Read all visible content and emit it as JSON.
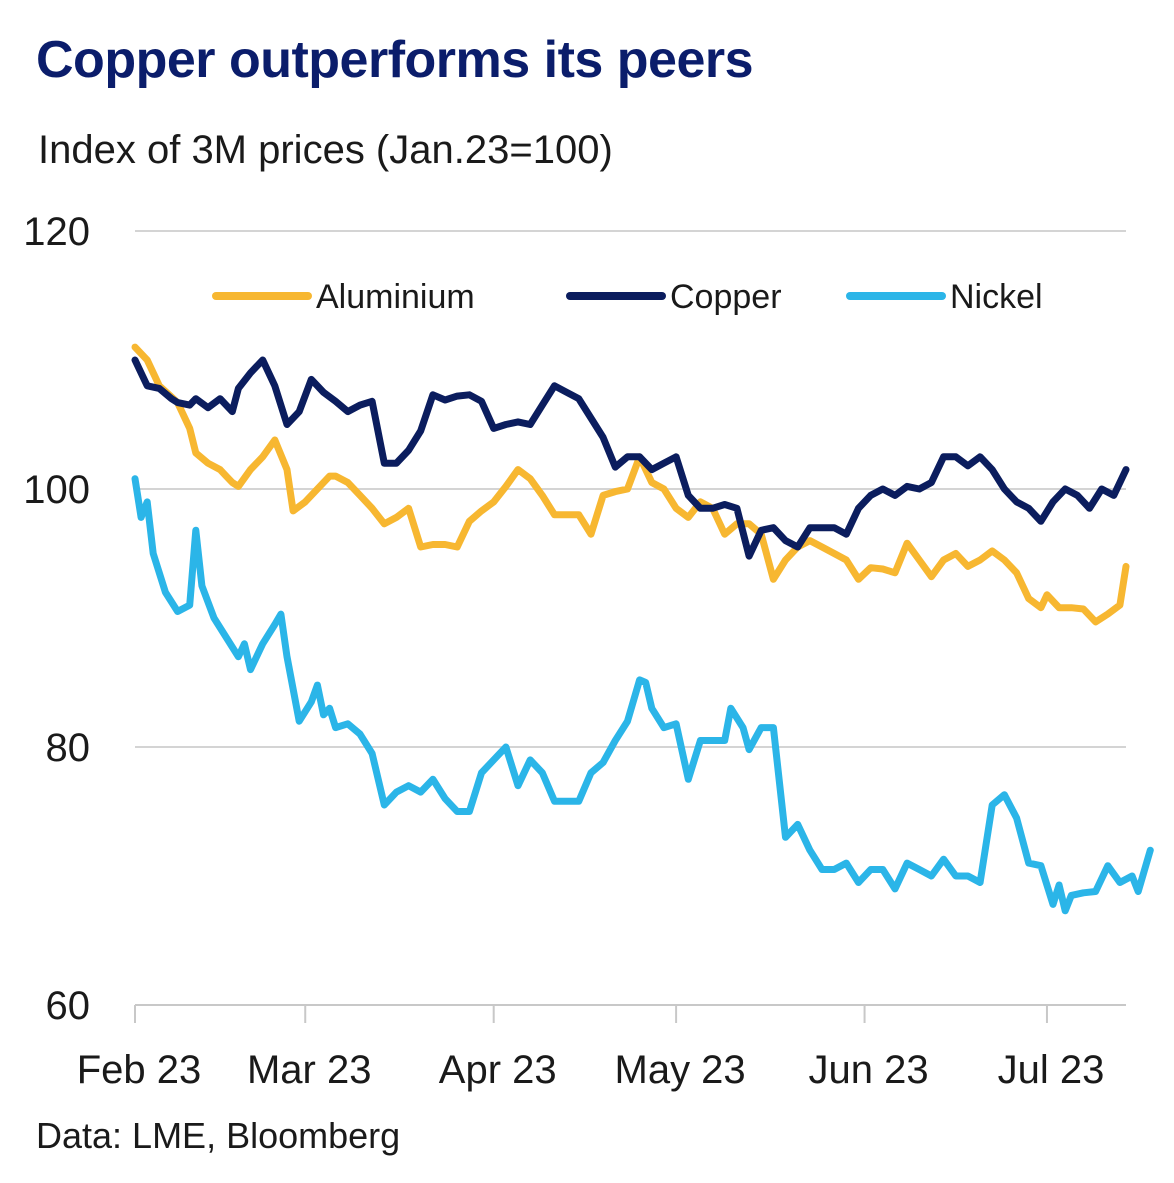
{
  "title": "Copper outperforms its peers",
  "subtitle": "Index of 3M prices (Jan.23=100)",
  "source": "Data: LME, Bloomberg",
  "chart_data": {
    "type": "line",
    "y_ticks": [
      "120",
      "100",
      "80",
      "60"
    ],
    "y_tick_values": [
      120,
      100,
      80,
      60
    ],
    "ylim": [
      60,
      120
    ],
    "x_ticks": [
      "Feb 23",
      "Mar 23",
      "Apr 23",
      "May 23",
      "Jun 23",
      "Jul 23"
    ],
    "x_tick_positions": [
      1,
      29,
      60,
      90,
      121,
      151
    ],
    "xlim": [
      1,
      164
    ],
    "grid": true,
    "legend_placement": "top",
    "series": [
      {
        "name": "Aluminium",
        "color": "#f7b731",
        "points": [
          [
            1,
            111
          ],
          [
            3,
            110
          ],
          [
            5,
            108
          ],
          [
            8,
            106.7
          ],
          [
            10,
            104.7
          ],
          [
            11,
            102.8
          ],
          [
            13,
            102
          ],
          [
            15,
            101.5
          ],
          [
            16,
            101
          ],
          [
            17,
            100.5
          ],
          [
            18,
            100.2
          ],
          [
            20,
            101.5
          ],
          [
            22,
            102.5
          ],
          [
            24,
            103.8
          ],
          [
            26,
            101.5
          ],
          [
            27,
            98.3
          ],
          [
            29,
            99
          ],
          [
            31,
            100
          ],
          [
            33,
            101
          ],
          [
            34,
            101
          ],
          [
            36,
            100.5
          ],
          [
            38,
            99.5
          ],
          [
            40,
            98.5
          ],
          [
            42,
            97.3
          ],
          [
            44,
            97.8
          ],
          [
            46,
            98.5
          ],
          [
            48,
            95.5
          ],
          [
            50,
            95.7
          ],
          [
            52,
            95.7
          ],
          [
            54,
            95.5
          ],
          [
            56,
            97.5
          ],
          [
            58,
            98.3
          ],
          [
            60,
            99
          ],
          [
            62,
            100.2
          ],
          [
            64,
            101.5
          ],
          [
            66,
            100.8
          ],
          [
            68,
            99.5
          ],
          [
            70,
            98
          ],
          [
            72,
            98
          ],
          [
            74,
            98
          ],
          [
            76,
            96.5
          ],
          [
            78,
            99.5
          ],
          [
            80,
            99.8
          ],
          [
            82,
            100
          ],
          [
            84,
            102.5
          ],
          [
            86,
            100.5
          ],
          [
            88,
            100
          ],
          [
            90,
            98.5
          ],
          [
            92,
            97.8
          ],
          [
            94,
            99
          ],
          [
            96,
            98.5
          ],
          [
            98,
            96.5
          ],
          [
            100,
            97.3
          ],
          [
            102,
            97.3
          ],
          [
            104,
            96.5
          ],
          [
            106,
            93
          ],
          [
            108,
            94.5
          ],
          [
            110,
            95.5
          ],
          [
            112,
            96
          ],
          [
            114,
            95.5
          ],
          [
            116,
            95
          ],
          [
            118,
            94.5
          ],
          [
            120,
            93
          ],
          [
            122,
            93.9
          ],
          [
            124,
            93.8
          ],
          [
            126,
            93.5
          ],
          [
            128,
            95.8
          ],
          [
            130,
            94.5
          ],
          [
            132,
            93.2
          ],
          [
            134,
            94.5
          ],
          [
            136,
            95
          ],
          [
            138,
            94
          ],
          [
            140,
            94.5
          ],
          [
            142,
            95.2
          ],
          [
            144,
            94.5
          ],
          [
            146,
            93.5
          ],
          [
            148,
            91.5
          ],
          [
            150,
            90.8
          ],
          [
            151,
            91.8
          ],
          [
            153,
            90.8
          ],
          [
            155,
            90.8
          ],
          [
            157,
            90.7
          ],
          [
            159,
            89.7
          ],
          [
            161,
            90.3
          ],
          [
            163,
            91
          ],
          [
            164,
            94
          ]
        ]
      },
      {
        "name": "Copper",
        "color": "#0b1d5e",
        "points": [
          [
            1,
            110
          ],
          [
            3,
            108
          ],
          [
            5,
            107.8
          ],
          [
            7,
            107
          ],
          [
            8,
            106.7
          ],
          [
            10,
            106.5
          ],
          [
            11,
            107
          ],
          [
            13,
            106.3
          ],
          [
            15,
            107
          ],
          [
            17,
            106
          ],
          [
            18,
            107.8
          ],
          [
            20,
            109
          ],
          [
            22,
            110
          ],
          [
            24,
            108
          ],
          [
            26,
            105
          ],
          [
            28,
            106
          ],
          [
            30,
            108.5
          ],
          [
            32,
            107.5
          ],
          [
            34,
            106.8
          ],
          [
            36,
            106
          ],
          [
            38,
            106.5
          ],
          [
            40,
            106.8
          ],
          [
            42,
            102
          ],
          [
            44,
            102
          ],
          [
            46,
            103
          ],
          [
            48,
            104.5
          ],
          [
            50,
            107.3
          ],
          [
            52,
            106.9
          ],
          [
            54,
            107.2
          ],
          [
            56,
            107.3
          ],
          [
            58,
            106.8
          ],
          [
            60,
            104.7
          ],
          [
            62,
            105
          ],
          [
            64,
            105.2
          ],
          [
            66,
            105
          ],
          [
            68,
            106.5
          ],
          [
            70,
            108
          ],
          [
            72,
            107.5
          ],
          [
            74,
            107
          ],
          [
            76,
            105.5
          ],
          [
            78,
            104
          ],
          [
            80,
            101.7
          ],
          [
            82,
            102.5
          ],
          [
            84,
            102.5
          ],
          [
            86,
            101.5
          ],
          [
            88,
            102
          ],
          [
            90,
            102.5
          ],
          [
            92,
            99.5
          ],
          [
            94,
            98.5
          ],
          [
            96,
            98.5
          ],
          [
            98,
            98.8
          ],
          [
            100,
            98.5
          ],
          [
            102,
            94.8
          ],
          [
            104,
            96.8
          ],
          [
            106,
            97
          ],
          [
            108,
            96
          ],
          [
            110,
            95.5
          ],
          [
            112,
            97
          ],
          [
            114,
            97
          ],
          [
            116,
            97
          ],
          [
            118,
            96.5
          ],
          [
            120,
            98.5
          ],
          [
            122,
            99.5
          ],
          [
            124,
            100
          ],
          [
            126,
            99.5
          ],
          [
            128,
            100.2
          ],
          [
            130,
            100
          ],
          [
            132,
            100.5
          ],
          [
            134,
            102.5
          ],
          [
            136,
            102.5
          ],
          [
            138,
            101.8
          ],
          [
            140,
            102.5
          ],
          [
            142,
            101.5
          ],
          [
            144,
            100
          ],
          [
            146,
            99
          ],
          [
            148,
            98.5
          ],
          [
            150,
            97.5
          ],
          [
            152,
            99
          ],
          [
            154,
            100
          ],
          [
            156,
            99.5
          ],
          [
            158,
            98.5
          ],
          [
            160,
            100
          ],
          [
            162,
            99.5
          ],
          [
            164,
            101.5
          ]
        ]
      },
      {
        "name": "Nickel",
        "color": "#2bb5e8",
        "points": [
          [
            1,
            100.8
          ],
          [
            2,
            97.8
          ],
          [
            3,
            99
          ],
          [
            4,
            95
          ],
          [
            6,
            92
          ],
          [
            8,
            90.5
          ],
          [
            10,
            91
          ],
          [
            11,
            96.8
          ],
          [
            12,
            92.5
          ],
          [
            14,
            90
          ],
          [
            16,
            88.5
          ],
          [
            18,
            87
          ],
          [
            19,
            88
          ],
          [
            20,
            86
          ],
          [
            22,
            88
          ],
          [
            24,
            89.5
          ],
          [
            25,
            90.3
          ],
          [
            26,
            87
          ],
          [
            28,
            82
          ],
          [
            30,
            83.5
          ],
          [
            31,
            84.8
          ],
          [
            32,
            82.5
          ],
          [
            33,
            83
          ],
          [
            34,
            81.5
          ],
          [
            36,
            81.8
          ],
          [
            38,
            81
          ],
          [
            40,
            79.5
          ],
          [
            42,
            75.5
          ],
          [
            44,
            76.5
          ],
          [
            46,
            77
          ],
          [
            48,
            76.5
          ],
          [
            50,
            77.5
          ],
          [
            52,
            76
          ],
          [
            54,
            75
          ],
          [
            56,
            75
          ],
          [
            58,
            78
          ],
          [
            60,
            79
          ],
          [
            62,
            80
          ],
          [
            64,
            77
          ],
          [
            66,
            79
          ],
          [
            68,
            78
          ],
          [
            70,
            75.8
          ],
          [
            72,
            75.8
          ],
          [
            74,
            75.8
          ],
          [
            76,
            78
          ],
          [
            78,
            78.8
          ],
          [
            80,
            80.5
          ],
          [
            82,
            82
          ],
          [
            84,
            85.2
          ],
          [
            85,
            85
          ],
          [
            86,
            83
          ],
          [
            88,
            81.5
          ],
          [
            90,
            81.8
          ],
          [
            92,
            77.5
          ],
          [
            94,
            80.5
          ],
          [
            96,
            80.5
          ],
          [
            98,
            80.5
          ],
          [
            99,
            83
          ],
          [
            101,
            81.5
          ],
          [
            102,
            79.8
          ],
          [
            104,
            81.5
          ],
          [
            106,
            81.5
          ],
          [
            108,
            73
          ],
          [
            110,
            74
          ],
          [
            112,
            72
          ],
          [
            114,
            70.5
          ],
          [
            116,
            70.5
          ],
          [
            118,
            71
          ],
          [
            120,
            69.5
          ],
          [
            122,
            70.5
          ],
          [
            124,
            70.5
          ],
          [
            126,
            69
          ],
          [
            128,
            71
          ],
          [
            130,
            70.5
          ],
          [
            132,
            70
          ],
          [
            134,
            71.3
          ],
          [
            136,
            70
          ],
          [
            138,
            70
          ],
          [
            140,
            69.5
          ],
          [
            142,
            75.5
          ],
          [
            144,
            76.3
          ],
          [
            146,
            74.5
          ],
          [
            148,
            71
          ],
          [
            150,
            70.8
          ],
          [
            152,
            67.8
          ],
          [
            153,
            69.3
          ],
          [
            154,
            67.3
          ],
          [
            155,
            68.5
          ],
          [
            157,
            68.7
          ],
          [
            159,
            68.8
          ],
          [
            161,
            70.8
          ],
          [
            163,
            69.5
          ],
          [
            165,
            70
          ],
          [
            166,
            68.8
          ],
          [
            168,
            72
          ]
        ]
      }
    ]
  }
}
